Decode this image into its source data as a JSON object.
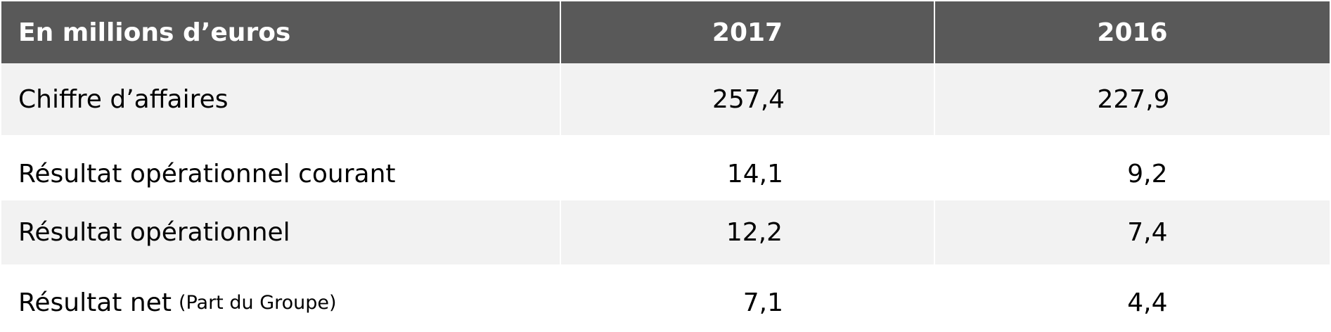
{
  "table": {
    "header": {
      "label": "En millions d’euros",
      "col_2017": "2017",
      "col_2016": "2016"
    },
    "rows": [
      {
        "label": "Chiffre d’affaires",
        "note": "",
        "v2017": "257,4",
        "v2016": "227,9"
      },
      {
        "label": "Résultat opérationnel courant",
        "note": "",
        "v2017": "14,1",
        "v2016": "9,2"
      },
      {
        "label": "Résultat opérationnel",
        "note": "",
        "v2017": "12,2",
        "v2016": "7,4"
      },
      {
        "label": "Résultat net",
        "note": "(Part du Groupe)",
        "v2017": "7,1",
        "v2016": "4,4"
      }
    ],
    "colors": {
      "header_bg": "#595959",
      "shaded_row_bg": "#f2f2f2",
      "plain_row_bg": "#ffffff"
    }
  }
}
